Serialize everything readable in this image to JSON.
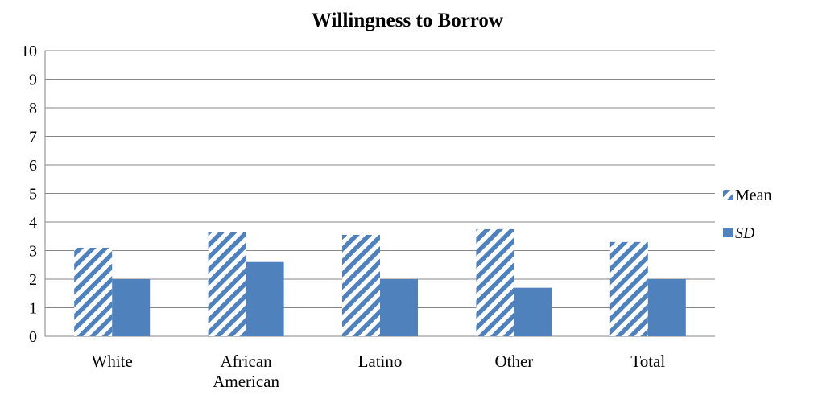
{
  "chart_data": {
    "type": "bar",
    "title": "Willingness to Borrow",
    "xlabel": "",
    "ylabel": "",
    "ylim": [
      0,
      10
    ],
    "yticks": [
      "0",
      "1",
      "2",
      "3",
      "4",
      "5",
      "6",
      "7",
      "8",
      "9",
      "10"
    ],
    "grid": true,
    "legend_position": "right",
    "categories": [
      [
        "White"
      ],
      [
        "African",
        "American"
      ],
      [
        "Latino"
      ],
      [
        "Other"
      ],
      [
        "Total"
      ]
    ],
    "series": [
      {
        "name": "Mean",
        "values": [
          3.1,
          3.65,
          3.55,
          3.75,
          3.3
        ],
        "fill": "hatched",
        "color": "#4f81bd"
      },
      {
        "name": "SD",
        "values": [
          2.0,
          2.6,
          2.0,
          1.7,
          2.0
        ],
        "fill": "solid",
        "color": "#4f81bd"
      }
    ]
  }
}
